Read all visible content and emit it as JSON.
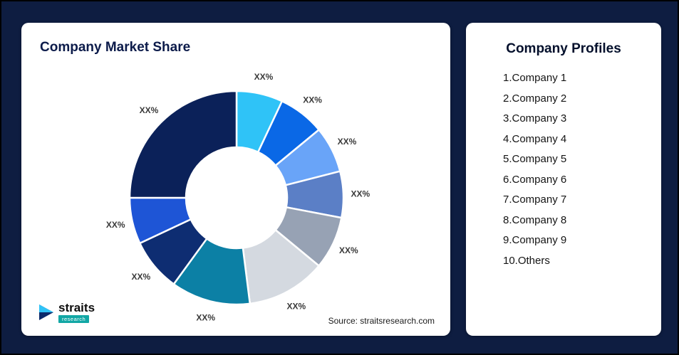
{
  "page": {
    "background_color": "#0e1d41"
  },
  "left_card": {
    "title": "Company Market Share",
    "source": "Source: straitsresearch.com"
  },
  "logo": {
    "name": "straits",
    "sub": "research",
    "icon": "play-arrow-icon",
    "icon_colors": [
      "#2fc3f7",
      "#0b2a6b"
    ]
  },
  "right_card": {
    "title": "Company Profiles",
    "items": [
      "1.Company 1",
      "2.Company 2",
      "3.Company 3",
      "4.Company 4",
      "5.Company 5",
      "6.Company 6",
      "7.Company 7",
      "8.Company 8",
      "9.Company 9",
      "10.Others"
    ]
  },
  "chart_data": {
    "type": "pie",
    "subtype": "donut",
    "title": "Company Market Share",
    "categories": [
      "Company 1",
      "Company 2",
      "Company 3",
      "Company 4",
      "Company 5",
      "Company 6",
      "Company 7",
      "Company 8",
      "Company 9",
      "Others"
    ],
    "values": [
      7,
      7,
      7,
      7,
      8,
      12,
      12,
      8,
      7,
      25
    ],
    "value_labels": [
      "XX%",
      "XX%",
      "XX%",
      "XX%",
      "XX%",
      "XX%",
      "XX%",
      "XX%",
      "XX%",
      "XX%"
    ],
    "colors": [
      "#2fc3f7",
      "#0a68e6",
      "#69a4f8",
      "#5b7fc6",
      "#97a2b4",
      "#d4d9e0",
      "#0c80a5",
      "#0e2d72",
      "#1e55d6",
      "#0b2159"
    ],
    "start_angle_deg": 0,
    "direction": "clockwise",
    "inner_radius_ratio": 0.47,
    "slice_border_color": "#ffffff",
    "label_color": "#3a3a3a",
    "legend_position": "none",
    "grid": false
  }
}
